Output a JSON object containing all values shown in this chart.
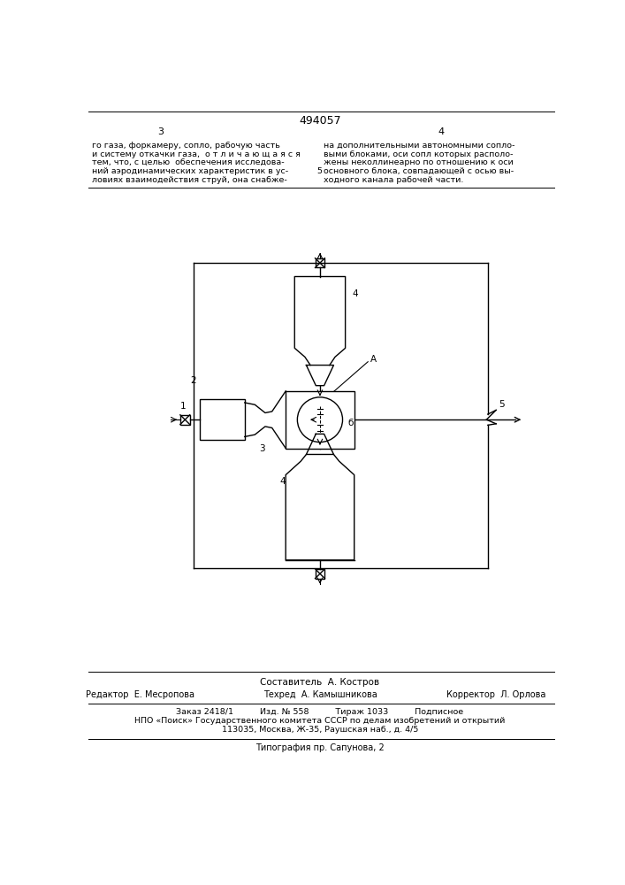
{
  "title": "494057",
  "page_left": "3",
  "page_right": "4",
  "text_left_lines": [
    "го газа, форкамеру, сопло, рабочую часть",
    "и систему откачки газа,  о т л и ч а ю щ а я с я",
    "тем, что, с целью  обеспечения исследова-",
    "ний аэродинамических характеристик в ус-",
    "ловиях взаимодействия струй, она снабже-"
  ],
  "text_right_lines": [
    "на дополнительными автономными сопло-",
    "выми блоками, оси сопл которых располо-",
    "жены неколлинеарно по отношению к оси",
    "основного блока, совпадающей с осью вы-",
    "ходного канала рабочей части."
  ],
  "text_number_5": "5",
  "footer_line1": "Составитель  А. Костров",
  "footer_editor": "Редактор  Е. Месропова",
  "footer_tech": "Техред  А. Камышникова",
  "footer_corrector": "Корректор  Л. Орлова",
  "footer_line3": "Заказ 2418/1          Изд. № 558          Тираж 1033          Подписное",
  "footer_line4": "НПО «Поиск» Государственного комитета СССР по делам изобретений и открытий",
  "footer_line5": "113035, Москва, Ж-35, Раушская наб., д. 4/5",
  "footer_line6": "Типография пр. Сапунова, 2",
  "bg_color": "#ffffff",
  "fg_color": "#000000"
}
